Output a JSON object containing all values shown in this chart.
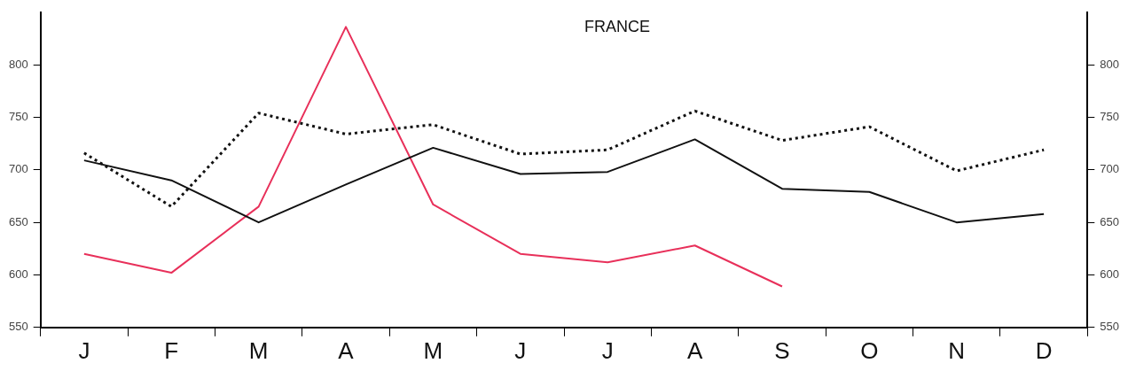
{
  "chart_data": {
    "type": "line",
    "title": "FRANCE",
    "categories": [
      "J",
      "F",
      "M",
      "A",
      "M",
      "J",
      "J",
      "A",
      "S",
      "O",
      "N",
      "D"
    ],
    "ylim": [
      550,
      850
    ],
    "yticks": [
      550,
      600,
      650,
      700,
      750,
      800
    ],
    "y2lim": [
      550,
      850
    ],
    "y2ticks": [
      550,
      600,
      650,
      700,
      750,
      800
    ],
    "series": [
      {
        "color": "#111111",
        "line_style": "dotted",
        "values": [
          716,
          665,
          754,
          734,
          743,
          715,
          719,
          756,
          728,
          741,
          699,
          719
        ]
      },
      {
        "color": "#111111",
        "line_style": "solid",
        "values": [
          709,
          690,
          650,
          686,
          721,
          696,
          698,
          729,
          682,
          679,
          650,
          658
        ]
      },
      {
        "color": "#e8305a",
        "line_style": "solid",
        "values": [
          620,
          602,
          665,
          836,
          667,
          620,
          612,
          628,
          589,
          null,
          null,
          null
        ]
      }
    ],
    "grid": false,
    "legend": false,
    "marker": "none"
  }
}
